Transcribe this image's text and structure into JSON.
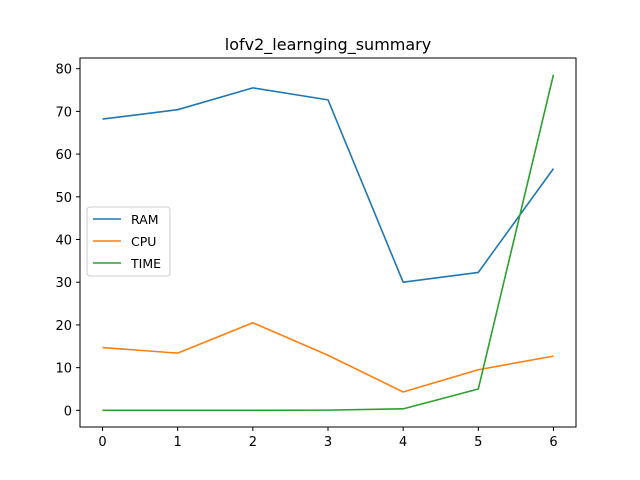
{
  "chart_data": {
    "type": "line",
    "title": "lofv2_learnging_summary",
    "xlabel": "",
    "ylabel": "",
    "x": [
      0,
      1,
      2,
      3,
      4,
      5,
      6
    ],
    "xlim": [
      -0.3,
      6.3
    ],
    "ylim": [
      -3.9,
      82.5
    ],
    "xticks": [
      0,
      1,
      2,
      3,
      4,
      5,
      6
    ],
    "yticks": [
      0,
      10,
      20,
      30,
      40,
      50,
      60,
      70,
      80
    ],
    "grid": false,
    "legend_position": "center-left",
    "series": [
      {
        "name": "RAM",
        "color": "#1f77b4",
        "values": [
          68.2,
          70.4,
          75.5,
          72.7,
          30.0,
          32.3,
          56.6
        ]
      },
      {
        "name": "CPU",
        "color": "#ff7f0e",
        "values": [
          14.7,
          13.4,
          20.5,
          12.9,
          4.3,
          9.5,
          12.7
        ]
      },
      {
        "name": "TIME",
        "color": "#2ca02c",
        "values": [
          0.0,
          0.0,
          0.0,
          0.05,
          0.35,
          5.0,
          78.6
        ]
      }
    ]
  }
}
